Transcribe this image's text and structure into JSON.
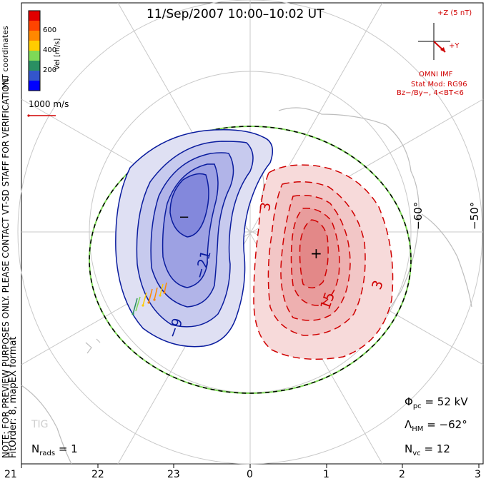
{
  "title": "11/Sep/2007 10:00–10:02 UT",
  "coord_label": "MLT coordinates",
  "side_note": "NOTE: FOR PREVIEW PURPOSES ONLY. PLEASE CONTACT VT-SD STAFF FOR VERIFICATION.",
  "fit_order": "FitOrder: 8, mapEX format",
  "vel_scale_label": "1000 m/s",
  "color_bar": {
    "label": "Vel [m/s]",
    "ticks": [
      "600",
      "400",
      "200"
    ],
    "colors": [
      "#e00000",
      "#ff4400",
      "#ff8800",
      "#ffcc00",
      "#7ed957",
      "#2a8f62",
      "#3355cc",
      "#0000ff"
    ]
  },
  "imf": {
    "z_label": "+Z (5 nT)",
    "y_label": "+Y",
    "source": "OMNI IMF",
    "stat_mod": "Stat Mod: RG96",
    "stat_cond": "Bz−/By−, 4<BT<6"
  },
  "lat_labels": [
    "−60°",
    "−50°"
  ],
  "contour_labels": {
    "neg_center": "−",
    "pos_center": "+",
    "neg_21": "−21",
    "neg_9": "−9",
    "pos_3a": "3",
    "pos_3b": "3",
    "pos_15": "15"
  },
  "stats": {
    "phi_pc_sym": "Φ",
    "phi_pc_sub": "pc",
    "phi_pc_val": "= 52 kV",
    "lambda_sym": "Λ",
    "lambda_sub": "HM",
    "lambda_val": "= −62°",
    "nvc_sym": "N",
    "nvc_sub": "vc",
    "nvc_val": "= 12",
    "nrads_sym": "N",
    "nrads_sub": "rads",
    "nrads_val": "= 1"
  },
  "station": "TIG",
  "mlt_ticks": [
    "21",
    "22",
    "23",
    "0",
    "1",
    "2",
    "3"
  ]
}
